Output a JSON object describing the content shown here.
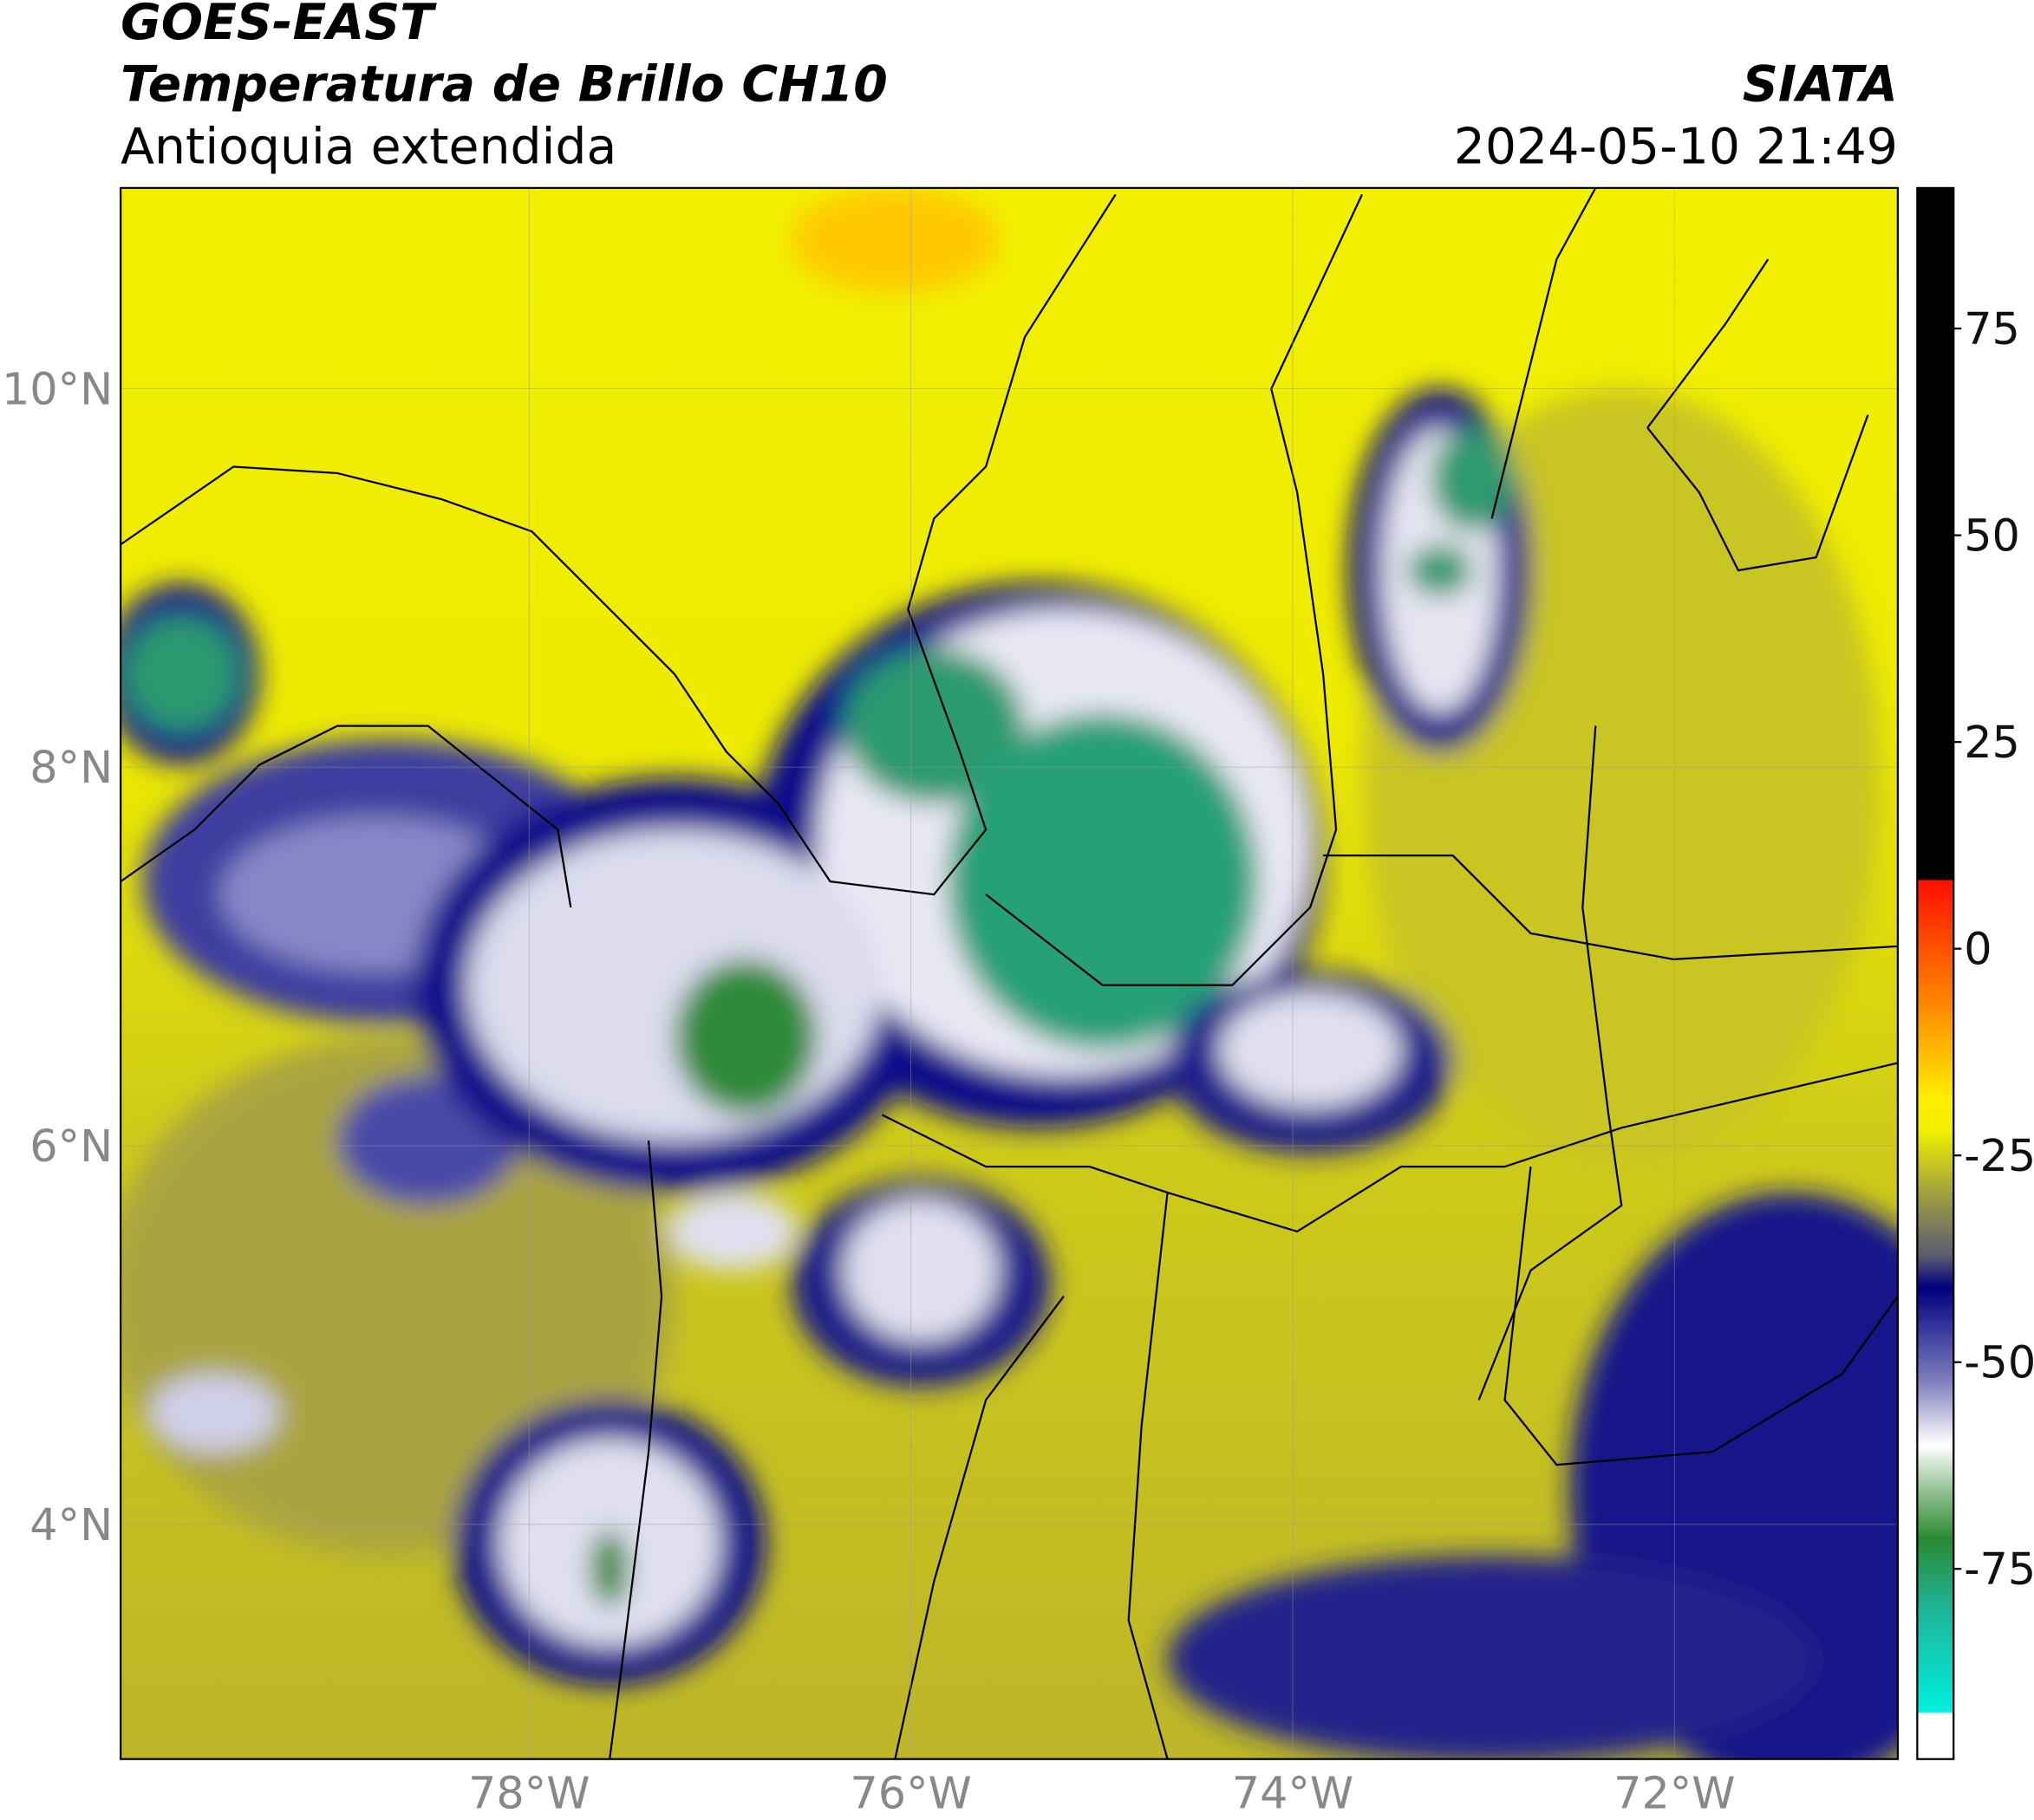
{
  "header": {
    "title": "GOES-EAST",
    "subtitle": "Temperatura de Brillo CH10",
    "region": "Antioquia extendida",
    "source": "SIATA",
    "datetime": "2024-05-10 21:49"
  },
  "map": {
    "lonlim": [
      -80.14,
      -70.83
    ],
    "latlim": [
      2.76,
      11.06
    ],
    "lonticks": [
      {
        "value": -78,
        "label": "78°W"
      },
      {
        "value": -76,
        "label": "76°W"
      },
      {
        "value": -74,
        "label": "74°W"
      },
      {
        "value": -72,
        "label": "72°W"
      }
    ],
    "latticks": [
      {
        "value": 10,
        "label": "10°N"
      },
      {
        "value": 8,
        "label": "8°N"
      },
      {
        "value": 6,
        "label": "6°N"
      },
      {
        "value": 4,
        "label": "4°N"
      }
    ]
  },
  "colorbar": {
    "lim": [
      -98,
      92
    ],
    "ticks": [
      75,
      50,
      25,
      0,
      -25,
      -50,
      -75
    ]
  }
}
